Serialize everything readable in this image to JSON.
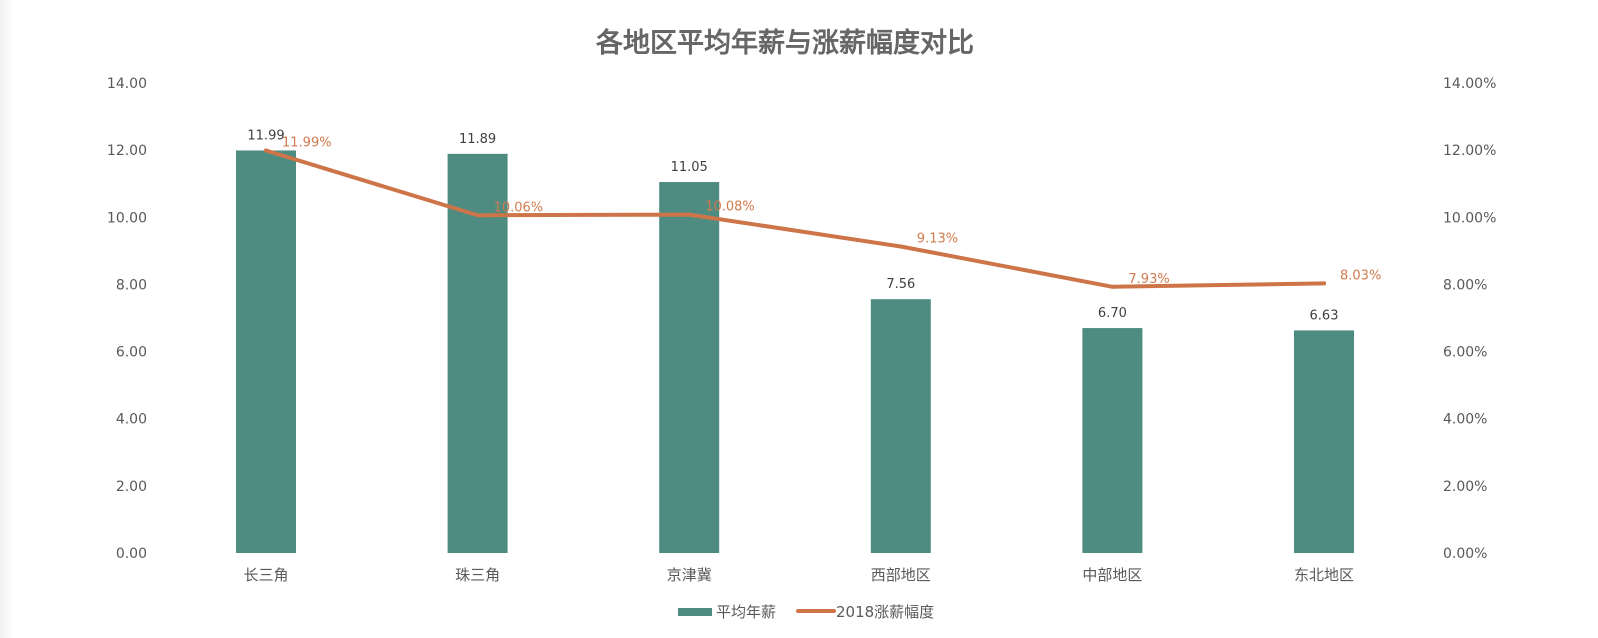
{
  "chart_data": {
    "type": "bar",
    "title": "各地区平均年薪与涨薪幅度对比",
    "categories": [
      "长三角",
      "珠三角",
      "京津冀",
      "西部地区",
      "中部地区",
      "东北地区"
    ],
    "series": [
      {
        "name": "平均年薪",
        "type": "bar",
        "axis": "left",
        "values": [
          11.99,
          11.89,
          11.05,
          7.56,
          6.7,
          6.63
        ],
        "labels": [
          "11.99",
          "11.89",
          "11.05",
          "7.56",
          "6.70",
          "6.63"
        ]
      },
      {
        "name": "2018涨薪幅度",
        "type": "line",
        "axis": "right",
        "values": [
          11.99,
          10.06,
          10.08,
          9.13,
          7.93,
          8.03
        ],
        "labels": [
          "11.99%",
          "10.06%",
          "10.08%",
          "9.13%",
          "7.93%",
          "8.03%"
        ]
      }
    ],
    "ylim": [
      0,
      14
    ],
    "y_ticks": [
      "0.00",
      "2.00",
      "4.00",
      "6.00",
      "8.00",
      "10.00",
      "12.00",
      "14.00"
    ],
    "y2lim": [
      0,
      14
    ],
    "y2_ticks": [
      "0.00%",
      "2.00%",
      "4.00%",
      "6.00%",
      "8.00%",
      "10.00%",
      "12.00%",
      "14.00%"
    ],
    "grid": false,
    "legend_position": "bottom",
    "colors": {
      "bar": "#4e8b81",
      "line": "#cd7549",
      "line_label": "#d27b4e"
    }
  }
}
